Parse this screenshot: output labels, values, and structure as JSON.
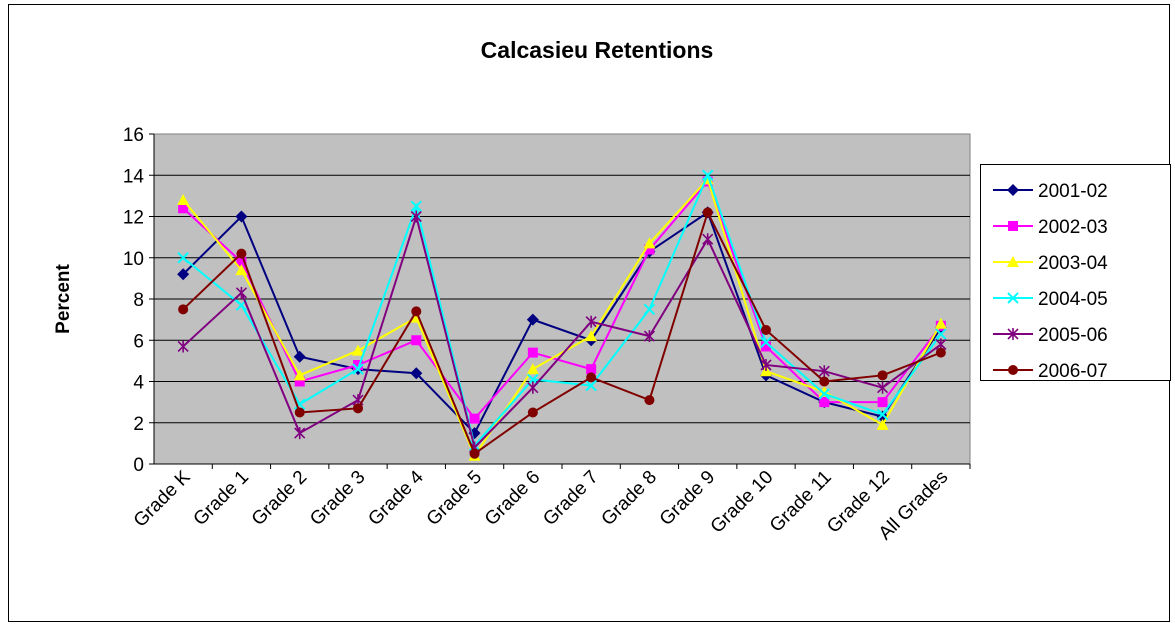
{
  "chart_data": {
    "type": "line",
    "title": "Calcasieu Retentions",
    "y_label": "Percent",
    "categories": [
      "Grade K",
      "Grade 1",
      "Grade 2",
      "Grade 3",
      "Grade 4",
      "Grade 5",
      "Grade 6",
      "Grade 7",
      "Grade 8",
      "Grade 9",
      "Grade 10",
      "Grade 11",
      "Grade 12",
      "All Grades"
    ],
    "series": [
      {
        "name": "2001-02",
        "color": "#000080",
        "values": [
          9.2,
          12.0,
          5.2,
          4.6,
          4.4,
          1.5,
          7.0,
          6.0,
          10.3,
          12.2,
          4.3,
          3.0,
          2.3,
          6.6
        ]
      },
      {
        "name": "2002-03",
        "color": "#ff00ff",
        "values": [
          12.4,
          9.8,
          4.0,
          4.8,
          6.0,
          2.2,
          5.4,
          4.6,
          10.4,
          13.7,
          5.7,
          3.0,
          3.0,
          6.7
        ]
      },
      {
        "name": "2003-04",
        "color": "#ffff00",
        "values": [
          12.8,
          9.4,
          4.3,
          5.5,
          7.1,
          0.4,
          4.6,
          6.2,
          10.7,
          13.8,
          4.5,
          3.5,
          1.9,
          6.8
        ]
      },
      {
        "name": "2004-05",
        "color": "#00ffff",
        "values": [
          10.0,
          7.7,
          2.9,
          4.6,
          12.5,
          0.9,
          4.1,
          3.8,
          7.5,
          14.0,
          5.9,
          3.4,
          2.4,
          6.3
        ]
      },
      {
        "name": "2005-06",
        "color": "#800080",
        "values": [
          5.7,
          8.3,
          1.5,
          3.1,
          12.0,
          0.8,
          3.7,
          6.9,
          6.2,
          10.9,
          4.8,
          4.5,
          3.7,
          5.8
        ]
      },
      {
        "name": "2006-07",
        "color": "#800000",
        "values": [
          7.5,
          10.2,
          2.5,
          2.7,
          7.4,
          0.5,
          2.5,
          4.2,
          3.1,
          12.2,
          6.5,
          4.0,
          4.3,
          5.4
        ]
      }
    ],
    "ylim": [
      0,
      16
    ],
    "yticks": [
      0,
      2,
      4,
      6,
      8,
      10,
      12,
      14,
      16
    ],
    "grid": true,
    "legend": "right"
  }
}
